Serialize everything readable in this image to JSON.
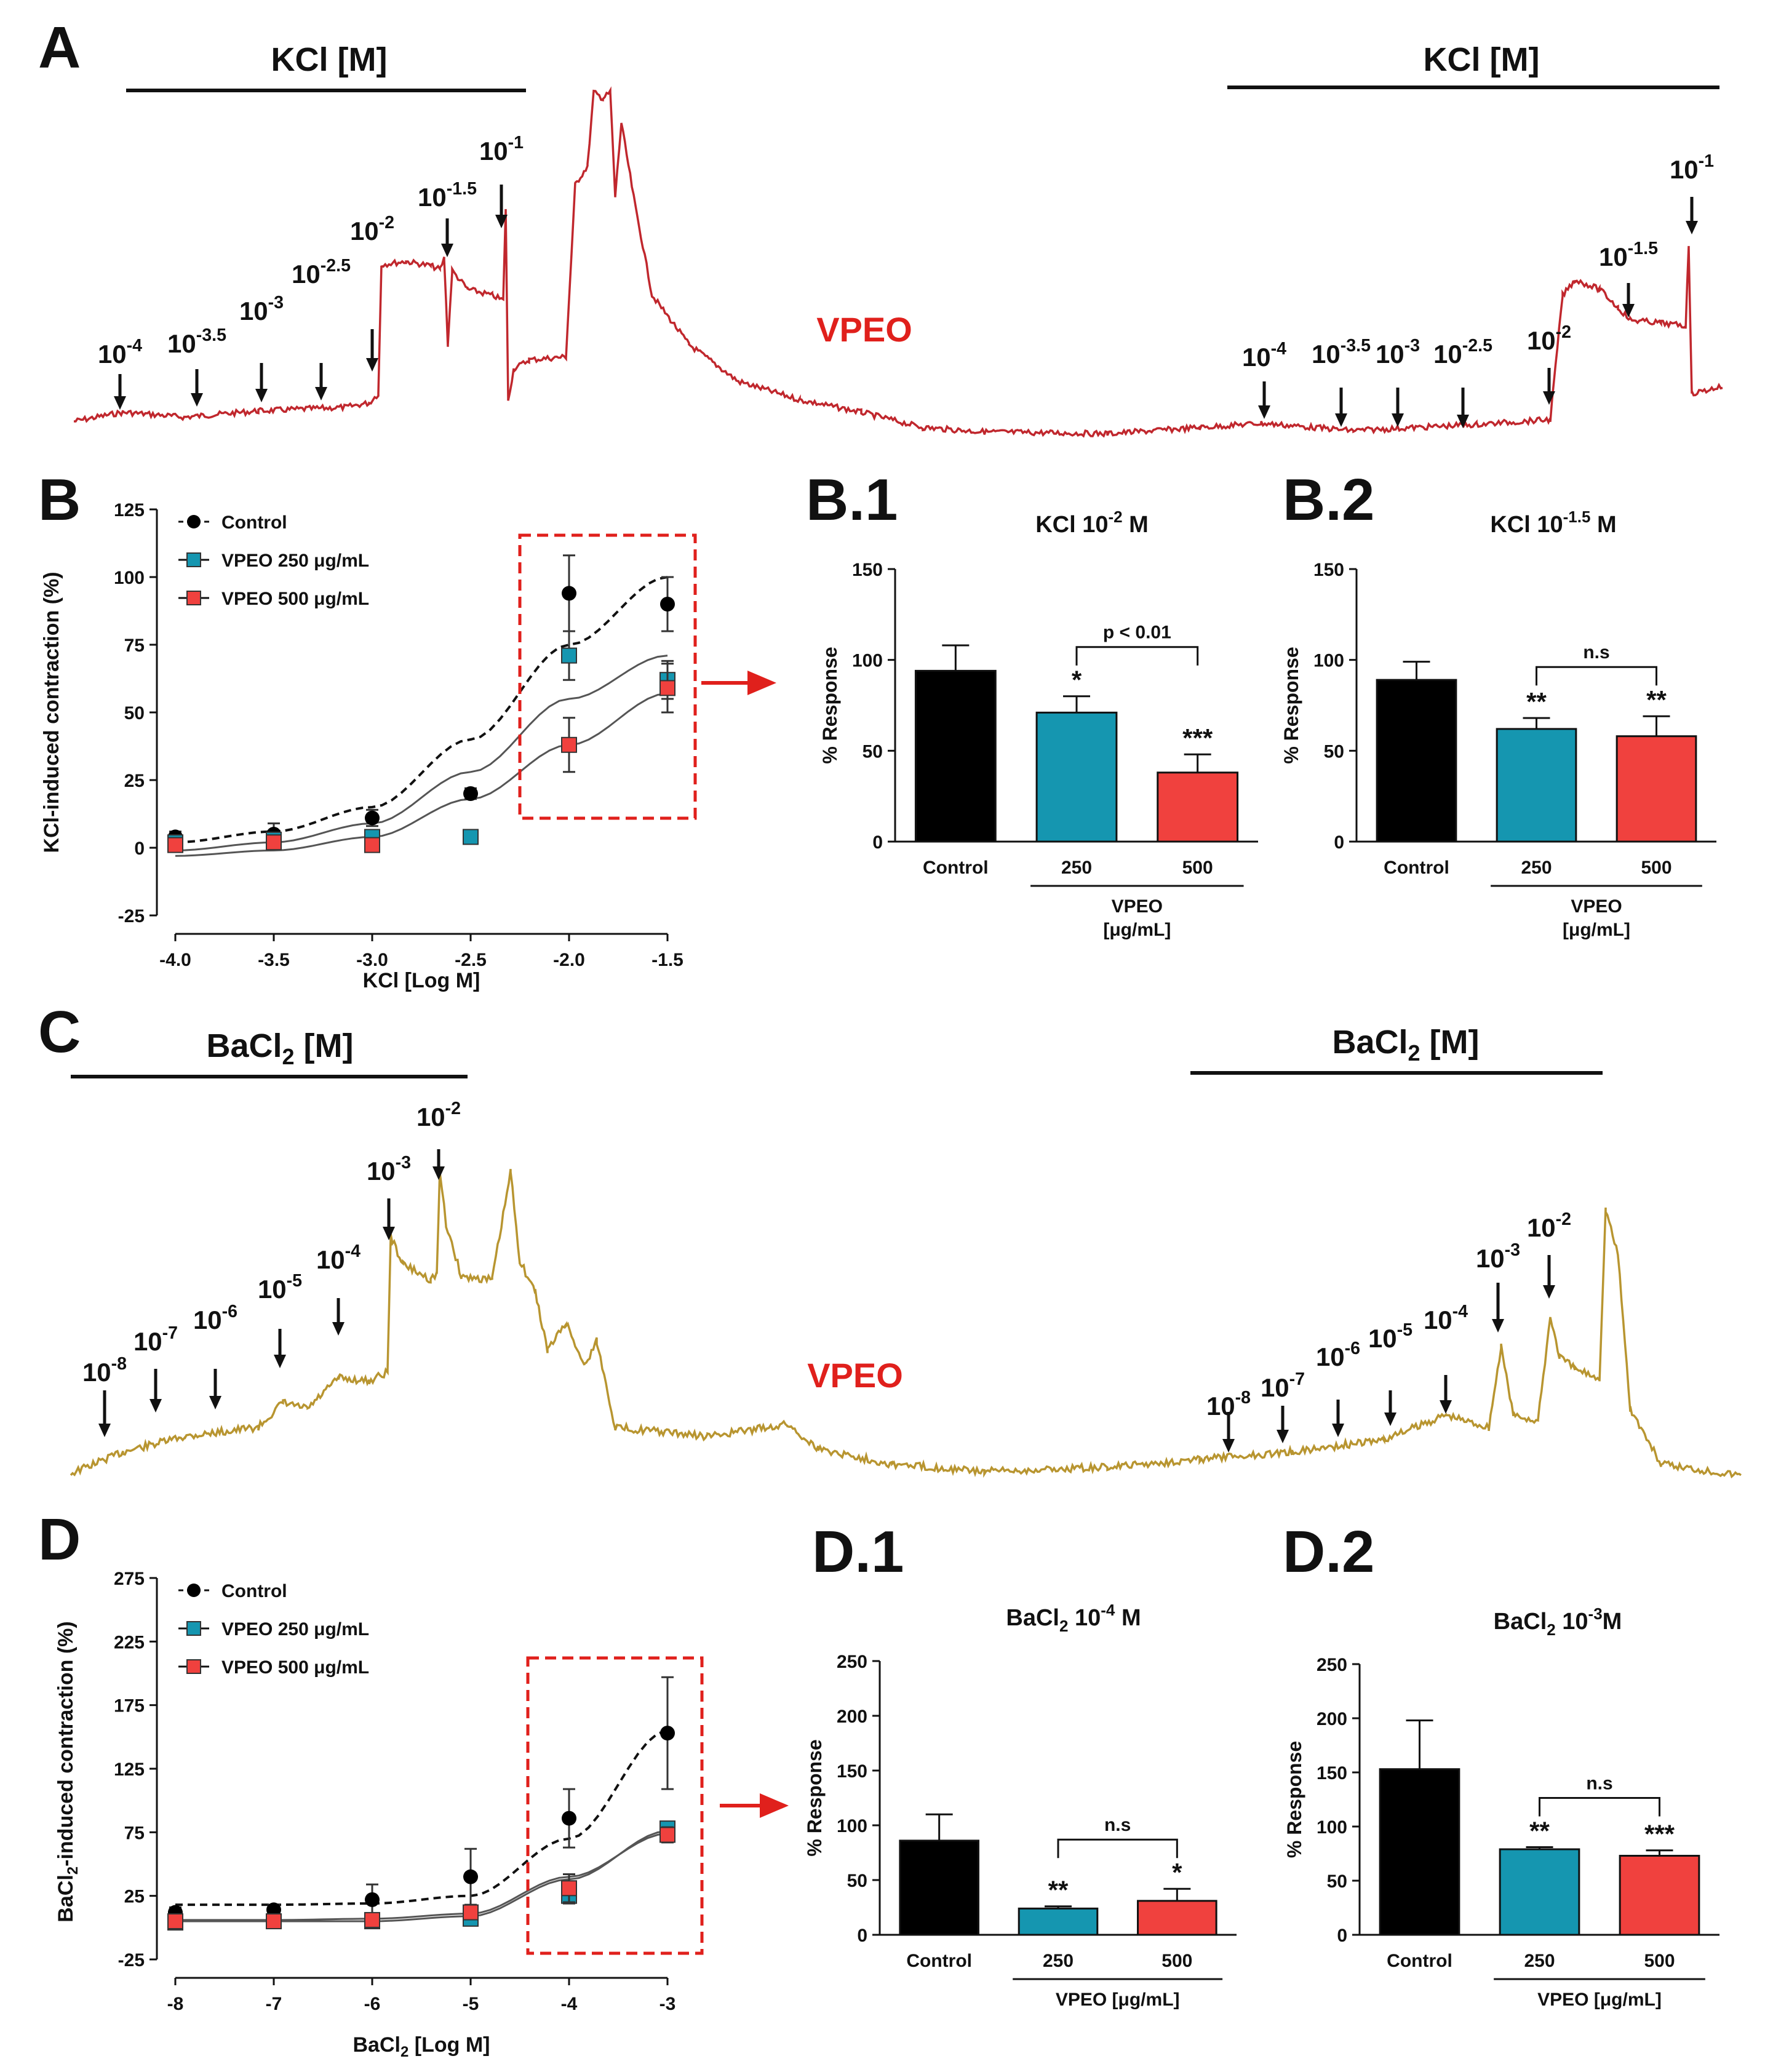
{
  "colors": {
    "kcl_trace": "#c0272d",
    "bacl2_trace": "#b89530",
    "control": "#000000",
    "vpeo250": "#1596b0",
    "vpeo500": "#f0413e",
    "highlight": "#e0201c"
  },
  "panels": {
    "a": {
      "label": "A",
      "bar_left": "KCl [M]",
      "bar_right": "KCl [M]",
      "vpeo": "VPEO",
      "left_arrows": [
        "10-4",
        "10-3.5",
        "10-3",
        "10-2.5",
        "10-2",
        "10-1.5",
        "10-1"
      ],
      "right_arrows": [
        "10-4",
        "10-3.5",
        "10-3",
        "10-2.5",
        "10-2",
        "10-1.5",
        "10-1"
      ]
    },
    "c": {
      "label": "C",
      "bar_left_base": "BaCl",
      "bar_left_sub": "2",
      "bar_left_tail": " [M]",
      "bar_right_base": "BaCl",
      "bar_right_sub": "2",
      "bar_right_tail": " [M]",
      "vpeo": "VPEO",
      "left_arrows": [
        "10-8",
        "10-7",
        "10-6",
        "10-5",
        "10-4",
        "10-3",
        "10-2"
      ],
      "right_arrows": [
        "10-8",
        "10-7",
        "10-6",
        "10-5",
        "10-4",
        "10-3",
        "10-2"
      ]
    },
    "b": {
      "label": "B"
    },
    "b1": {
      "label": "B.1"
    },
    "b2": {
      "label": "B.2"
    },
    "d": {
      "label": "D"
    },
    "d1": {
      "label": "D.1"
    },
    "d2": {
      "label": "D.2"
    }
  },
  "chart_data": [
    {
      "id": "B",
      "type": "scatter",
      "title": "",
      "xlabel": "KCl [Log M]",
      "ylabel": "KCl-induced contraction (%)",
      "xlim": [
        -4.0,
        -1.5
      ],
      "ylim": [
        -25,
        125
      ],
      "xticks": [
        -4.0,
        -3.5,
        -3.0,
        -2.5,
        -2.0,
        -1.5
      ],
      "xtick_labels": [
        "-4.0",
        "-3.5",
        "-3.0",
        "-2.5",
        "-2.0",
        "-1.5"
      ],
      "yticks": [
        -25,
        0,
        25,
        50,
        75,
        100,
        125
      ],
      "x": [
        -4.0,
        -3.5,
        -3.0,
        -2.5,
        -2.0,
        -1.5
      ],
      "series": [
        {
          "name": "Control",
          "values": [
            4,
            5,
            11,
            20,
            94,
            90
          ],
          "errors": [
            2,
            4,
            3,
            2,
            14,
            10
          ],
          "fit": [
            2,
            6,
            15,
            40,
            75,
            100
          ]
        },
        {
          "name": "VPEO 250 μg/mL",
          "values": [
            2,
            3,
            4,
            4,
            71,
            62
          ],
          "errors": [
            1,
            2,
            2,
            0,
            9,
            7
          ],
          "fit": [
            -1,
            2,
            9,
            28,
            55,
            71
          ]
        },
        {
          "name": "VPEO 500 μg/mL",
          "values": [
            1,
            2,
            1,
            null,
            38,
            59
          ],
          "errors": [
            1,
            2,
            1,
            null,
            10,
            9
          ],
          "fit": [
            -3,
            -1,
            4,
            18,
            38,
            57
          ]
        }
      ],
      "legend": "top-left",
      "highlight": "dashed box around -2.0 to -1.5"
    },
    {
      "id": "B.1",
      "type": "bar",
      "title_base": "KCl 10",
      "title_exp": "-2",
      "title_tail": " M",
      "ylabel": "% Response",
      "ylim": [
        0,
        150
      ],
      "yticks": [
        0,
        50,
        100,
        150
      ],
      "categories": [
        "Control",
        "250",
        "500"
      ],
      "values": [
        94,
        71,
        38
      ],
      "errors": [
        14,
        9,
        10
      ],
      "stars": [
        "",
        "*",
        "***"
      ],
      "bracket": "p < 0.01",
      "group_label": [
        "VPEO",
        "[μg/mL]"
      ]
    },
    {
      "id": "B.2",
      "type": "bar",
      "title_base": "KCl 10",
      "title_exp": "-1.5",
      "title_tail": " M",
      "ylabel": "% Response",
      "ylim": [
        0,
        150
      ],
      "yticks": [
        0,
        50,
        100,
        150
      ],
      "categories": [
        "Control",
        "250",
        "500"
      ],
      "values": [
        89,
        62,
        58
      ],
      "errors": [
        10,
        6,
        11
      ],
      "stars": [
        "",
        "**",
        "**"
      ],
      "bracket": "n.s",
      "group_label": [
        "VPEO",
        "[μg/mL]"
      ]
    },
    {
      "id": "D",
      "type": "scatter",
      "title": "",
      "xlabel_base": "BaCl",
      "xlabel_sub": "2",
      "xlabel_tail": " [Log M]",
      "ylabel_base": "BaCl",
      "ylabel_sub": "2",
      "ylabel_tail": "-induced contraction (%)",
      "xlim": [
        -8,
        -3
      ],
      "ylim": [
        -25,
        275
      ],
      "xticks": [
        -8,
        -7,
        -6,
        -5,
        -4,
        -3
      ],
      "xtick_labels": [
        "-8",
        "-7",
        "-6",
        "-5",
        "-4",
        "-3"
      ],
      "yticks": [
        -25,
        25,
        75,
        125,
        175,
        225,
        275
      ],
      "x": [
        -8,
        -7,
        -6,
        -5,
        -4,
        -3
      ],
      "series": [
        {
          "name": "Control",
          "values": [
            12,
            14,
            22,
            40,
            86,
            153
          ],
          "errors": [
            4,
            4,
            12,
            22,
            23,
            44
          ],
          "fit": [
            18,
            18,
            19,
            25,
            70,
            155
          ]
        },
        {
          "name": "VPEO 250 μg/mL",
          "values": [
            4,
            5,
            5,
            7,
            25,
            78
          ],
          "errors": [
            2,
            2,
            2,
            3,
            6,
            4
          ],
          "fit": [
            5,
            5,
            5,
            9,
            38,
            76
          ]
        },
        {
          "name": "VPEO 500 μg/mL",
          "values": [
            5,
            5,
            6,
            12,
            31,
            73
          ],
          "errors": [
            2,
            2,
            3,
            4,
            11,
            6
          ],
          "fit": [
            6,
            6,
            7,
            11,
            40,
            74
          ]
        }
      ],
      "legend": "top-left",
      "highlight": "dashed box around -4 to -3"
    },
    {
      "id": "D.1",
      "type": "bar",
      "title_base": "BaCl",
      "title_sub": "2",
      "title_mid": " 10",
      "title_exp": "-4",
      "title_tail": " M",
      "ylabel": "% Response",
      "ylim": [
        0,
        250
      ],
      "yticks": [
        0,
        50,
        100,
        150,
        200,
        250
      ],
      "categories": [
        "Control",
        "250",
        "500"
      ],
      "values": [
        86,
        24,
        31
      ],
      "errors": [
        24,
        2,
        11
      ],
      "stars": [
        "",
        "**",
        "*"
      ],
      "bracket": "n.s",
      "group_label": [
        "VPEO [μg/mL]"
      ]
    },
    {
      "id": "D.2",
      "type": "bar",
      "title_base": "BaCl",
      "title_sub": "2",
      "title_mid": "  10",
      "title_exp": "-3",
      "title_tail": "M",
      "ylabel": "% Response",
      "ylim": [
        0,
        250
      ],
      "yticks": [
        0,
        50,
        100,
        150,
        200,
        250
      ],
      "categories": [
        "Control",
        "250",
        "500"
      ],
      "values": [
        153,
        79,
        73
      ],
      "errors": [
        45,
        2,
        5
      ],
      "stars": [
        "",
        "**",
        "***"
      ],
      "bracket": "n.s",
      "group_label": [
        "VPEO [μg/mL]"
      ]
    }
  ]
}
